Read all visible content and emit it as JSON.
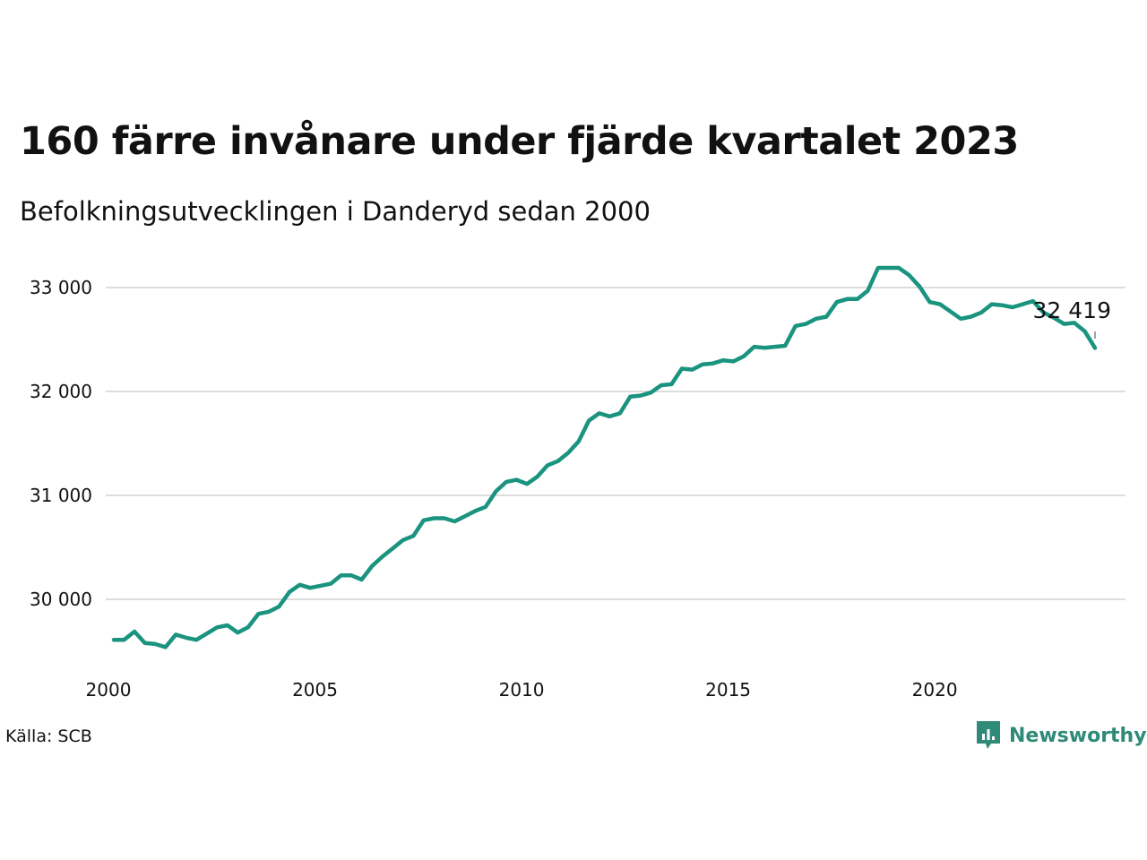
{
  "header": {
    "title": "160 färre invånare under fjärde kvartalet 2023",
    "subtitle": "Befolkningsutvecklingen i Danderyd sedan 2000"
  },
  "footer": {
    "source": "Källa: SCB",
    "brand": "Newsworthy",
    "brand_icon": "newsworthy-logo-icon"
  },
  "colors": {
    "line": "#1a937f",
    "grid": "#dddddd",
    "brand": "#2f8a78"
  },
  "chart_data": {
    "type": "line",
    "xlim": [
      2000,
      2024
    ],
    "ylim": [
      29400,
      33300
    ],
    "x_ticks": [
      2000,
      2005,
      2010,
      2015,
      2020
    ],
    "x_tick_labels": [
      "2000",
      "2005",
      "2010",
      "2015",
      "2020"
    ],
    "y_ticks": [
      30000,
      31000,
      32000,
      33000
    ],
    "y_tick_labels": [
      "30 000",
      "31 000",
      "32 000",
      "33 000"
    ],
    "grid": "horizontal",
    "last_value_label": "32 419",
    "series": [
      {
        "x": [
          2000.0,
          2000.25,
          2000.5,
          2000.75,
          2001.0,
          2001.25,
          2001.5,
          2001.75,
          2002.0,
          2002.25,
          2002.5,
          2002.75,
          2003.0,
          2003.25,
          2003.5,
          2003.75,
          2004.0,
          2004.25,
          2004.5,
          2004.75,
          2005.0,
          2005.25,
          2005.5,
          2005.75,
          2006.0,
          2006.25,
          2006.5,
          2006.75,
          2007.0,
          2007.25,
          2007.5,
          2007.75,
          2008.0,
          2008.25,
          2008.5,
          2008.75,
          2009.0,
          2009.25,
          2009.5,
          2009.75,
          2010.0,
          2010.25,
          2010.5,
          2010.75,
          2011.0,
          2011.25,
          2011.5,
          2011.75,
          2012.0,
          2012.25,
          2012.5,
          2012.75,
          2013.0,
          2013.25,
          2013.5,
          2013.75,
          2014.0,
          2014.25,
          2014.5,
          2014.75,
          2015.0,
          2015.25,
          2015.5,
          2015.75,
          2016.0,
          2016.25,
          2016.5,
          2016.75,
          2017.0,
          2017.25,
          2017.5,
          2017.75,
          2018.0,
          2018.25,
          2018.5,
          2018.75,
          2019.0,
          2019.25,
          2019.5,
          2019.75,
          2020.0,
          2020.25,
          2020.5,
          2020.75,
          2021.0,
          2021.25,
          2021.5,
          2021.75,
          2022.0,
          2022.25,
          2022.5,
          2022.75,
          2023.0,
          2023.25,
          2023.5,
          2023.75
        ],
        "values": [
          29610,
          29610,
          29690,
          29580,
          29570,
          29540,
          29660,
          29630,
          29610,
          29670,
          29730,
          29750,
          29680,
          29730,
          29860,
          29880,
          29930,
          30070,
          30140,
          30110,
          30130,
          30150,
          30230,
          30230,
          30190,
          30320,
          30410,
          30490,
          30570,
          30610,
          30760,
          30780,
          30780,
          30750,
          30800,
          30850,
          30890,
          31040,
          31130,
          31150,
          31110,
          31180,
          31290,
          31330,
          31410,
          31520,
          31720,
          31790,
          31760,
          31790,
          31950,
          31960,
          31990,
          32060,
          32070,
          32220,
          32210,
          32260,
          32270,
          32300,
          32290,
          32340,
          32430,
          32420,
          32430,
          32440,
          32630,
          32650,
          32700,
          32720,
          32860,
          32890,
          32890,
          32970,
          33190,
          33190,
          33190,
          33120,
          33010,
          32860,
          32840,
          32770,
          32700,
          32720,
          32760,
          32840,
          32830,
          32810,
          32840,
          32870,
          32760,
          32710,
          32650,
          32660,
          32580,
          32419
        ]
      }
    ]
  }
}
